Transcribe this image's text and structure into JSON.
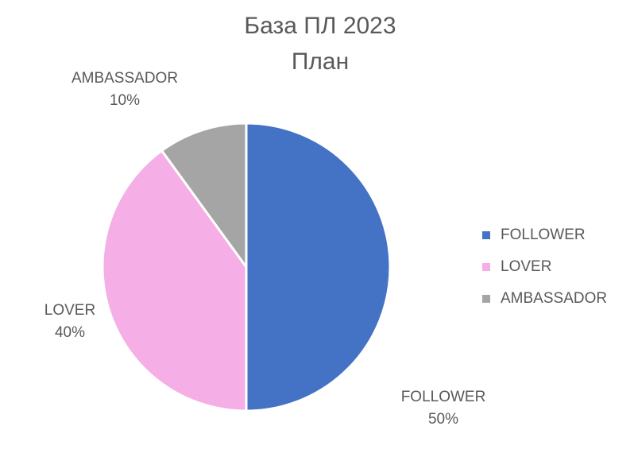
{
  "chart_data": {
    "type": "pie",
    "title": "База ПЛ 2023",
    "subtitle": "План",
    "categories": [
      "FOLLOWER",
      "LOVER",
      "AMBASSADOR"
    ],
    "values": [
      50,
      40,
      10
    ],
    "value_labels": [
      "50%",
      "40%",
      "10%"
    ],
    "colors": [
      "#4472c4",
      "#f5aee6",
      "#a5a5a5"
    ],
    "legend": "right"
  }
}
